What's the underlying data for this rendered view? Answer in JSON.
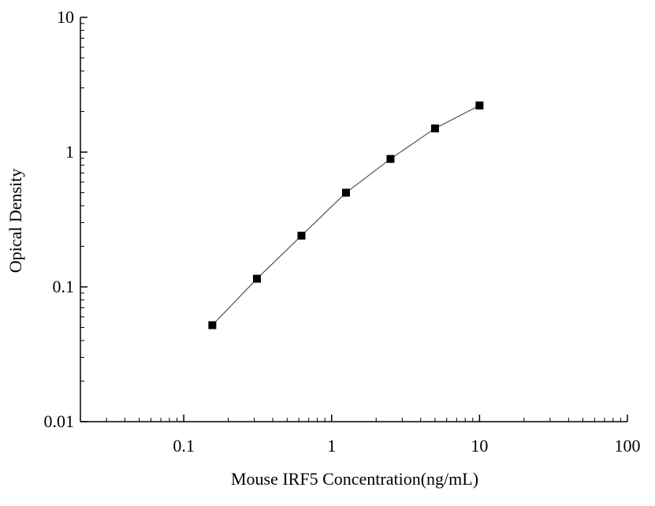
{
  "chart_data": {
    "type": "scatter",
    "title": "",
    "xlabel": "Mouse IRF5 Concentration(ng/mL)",
    "ylabel": "Opical Density",
    "x_scale": "log",
    "y_scale": "log",
    "xlim": [
      0.02,
      100
    ],
    "ylim": [
      0.01,
      10
    ],
    "x_ticks": [
      {
        "value": 0.1,
        "label": "0.1"
      },
      {
        "value": 1,
        "label": "1"
      },
      {
        "value": 10,
        "label": "10"
      },
      {
        "value": 100,
        "label": "100"
      }
    ],
    "y_ticks": [
      {
        "value": 0.01,
        "label": "0.01"
      },
      {
        "value": 0.1,
        "label": "0.1"
      },
      {
        "value": 1,
        "label": "1"
      },
      {
        "value": 10,
        "label": "10"
      }
    ],
    "grid": false,
    "legend": false,
    "series": [
      {
        "marker": "square",
        "line": true,
        "x": [
          0.156,
          0.3125,
          0.625,
          1.25,
          2.5,
          5,
          10
        ],
        "y": [
          0.052,
          0.115,
          0.24,
          0.5,
          0.89,
          1.5,
          2.22
        ]
      }
    ],
    "colors": {
      "axis": "#000000",
      "marker": "#000000",
      "line": "#333333"
    }
  }
}
